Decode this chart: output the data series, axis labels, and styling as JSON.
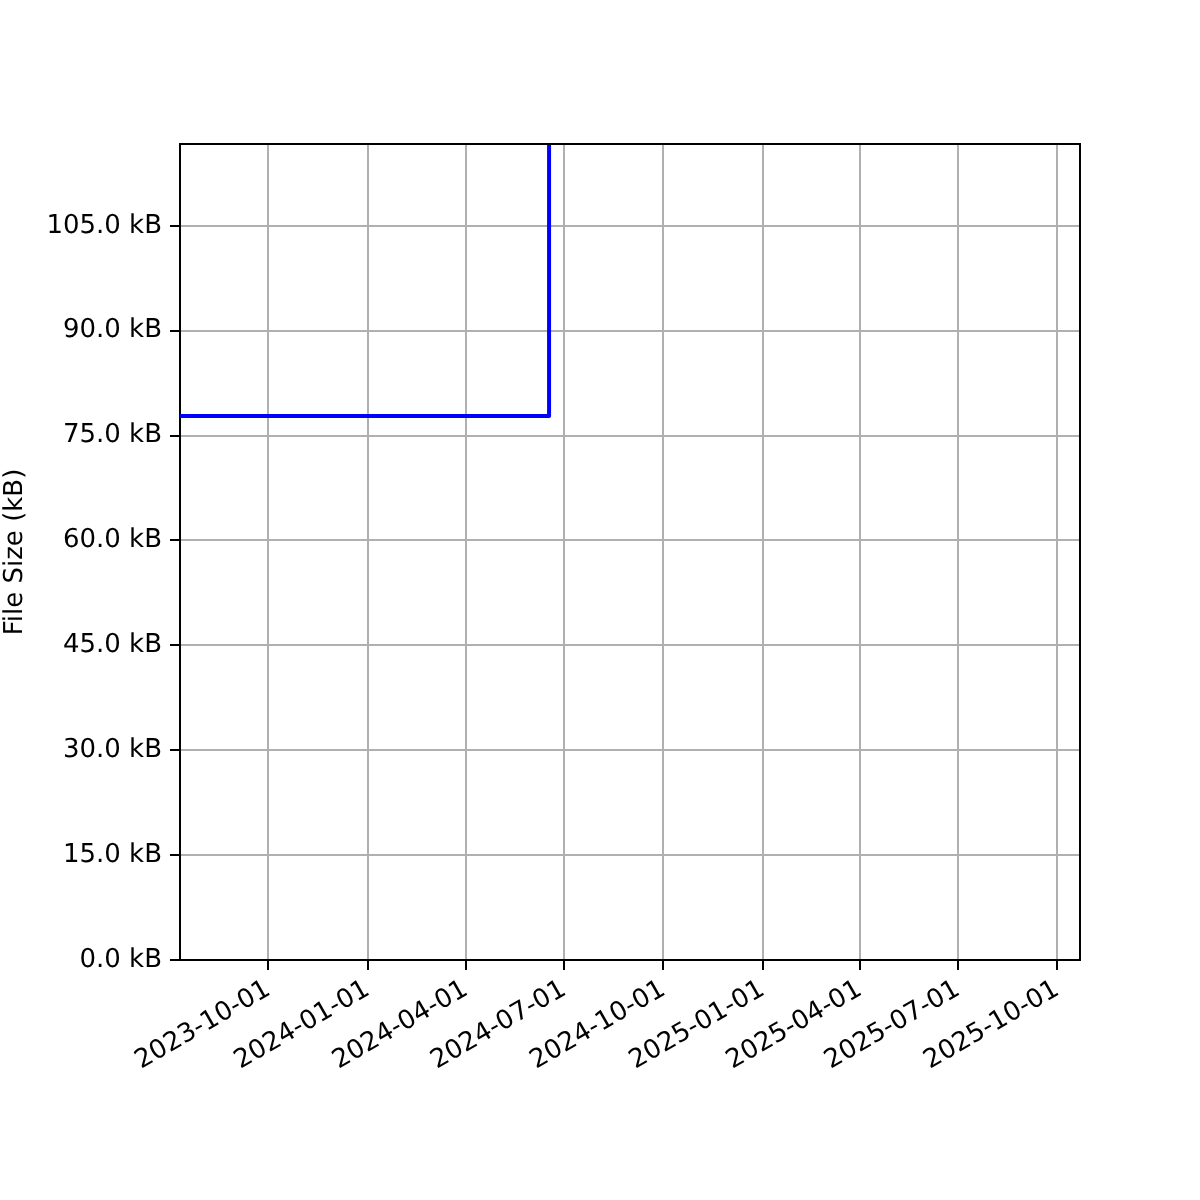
{
  "chart_data": {
    "type": "step",
    "ylabel": "File Size (kB)",
    "x": [
      "2023-07-11",
      "2024-06-17"
    ],
    "series": [
      {
        "color": "#0000ff",
        "values": [
          77.8,
          116.7
        ]
      }
    ],
    "xlim": [
      "2023-07-11",
      "2025-10-22"
    ],
    "xticks": [
      "2023-10-01",
      "2024-01-01",
      "2024-04-01",
      "2024-07-01",
      "2024-10-01",
      "2025-01-01",
      "2025-04-01",
      "2025-07-01",
      "2025-10-01"
    ],
    "ylim": [
      0,
      116.7
    ],
    "yticks": [
      {
        "value": 0,
        "label": "0.0 kB"
      },
      {
        "value": 15,
        "label": "15.0 kB"
      },
      {
        "value": 30,
        "label": "30.0 kB"
      },
      {
        "value": 45,
        "label": "45.0 kB"
      },
      {
        "value": 60,
        "label": "60.0 kB"
      },
      {
        "value": 75,
        "label": "75.0 kB"
      },
      {
        "value": 90,
        "label": "90.0 kB"
      },
      {
        "value": 105,
        "label": "105.0 kB"
      }
    ],
    "grid": true,
    "legend": false,
    "marker": "none"
  }
}
